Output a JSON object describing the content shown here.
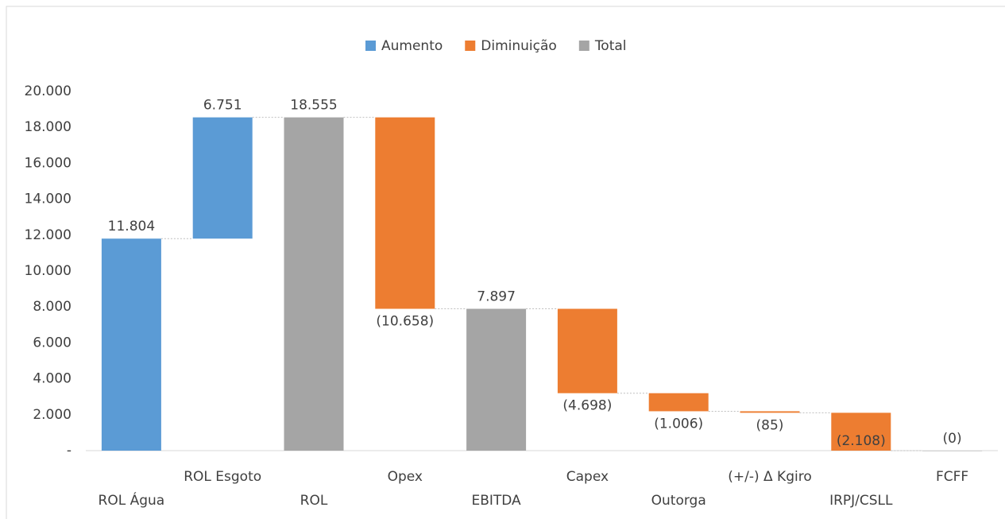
{
  "chart_data": {
    "type": "waterfall",
    "categories": [
      "ROL Água",
      "ROL Esgoto",
      "ROL",
      "Opex",
      "EBITDA",
      "Capex",
      "Outorga",
      "(+/-) Δ Kgiro",
      "IRPJ/CSLL",
      "FCFF"
    ],
    "values": [
      11804,
      6751,
      18555,
      -10658,
      7897,
      -4698,
      -1006,
      -85,
      -2108,
      0
    ],
    "value_labels": [
      "11.804",
      "6.751",
      "18.555",
      "(10.658)",
      "7.897",
      "(4.698)",
      "(1.006)",
      "(85)",
      "(2.108)",
      "(0)"
    ],
    "series": [
      {
        "name": "Aumento",
        "color": "#5b9bd5"
      },
      {
        "name": "Diminuição",
        "color": "#ed7d31"
      },
      {
        "name": "Total",
        "color": "#a5a5a5"
      }
    ],
    "point_series": [
      0,
      0,
      2,
      1,
      2,
      1,
      1,
      1,
      1,
      2
    ],
    "ylim": [
      0,
      20000
    ],
    "yticks": [
      {
        "value": 0,
        "label": "-"
      },
      {
        "value": 2000,
        "label": "2.000"
      },
      {
        "value": 4000,
        "label": "4.000"
      },
      {
        "value": 6000,
        "label": "6.000"
      },
      {
        "value": 8000,
        "label": "8.000"
      },
      {
        "value": 10000,
        "label": "10.000"
      },
      {
        "value": 12000,
        "label": "12.000"
      },
      {
        "value": 14000,
        "label": "14.000"
      },
      {
        "value": 16000,
        "label": "16.000"
      },
      {
        "value": 18000,
        "label": "18.000"
      },
      {
        "value": 20000,
        "label": "20.000"
      }
    ],
    "legend": "top"
  }
}
